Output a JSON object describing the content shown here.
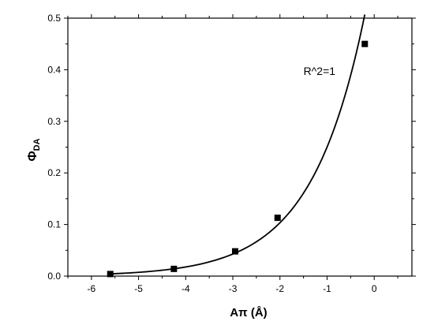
{
  "chart_data": {
    "type": "scatter",
    "title": "",
    "xlabel": {
      "main": "Aπ (Å)"
    },
    "ylabel": {
      "main": "Φ",
      "sub": "DA"
    },
    "xlim": [
      -6.5,
      0.8
    ],
    "ylim": [
      0.0,
      0.5
    ],
    "xticks": [
      -6,
      -5,
      -4,
      -3,
      -2,
      -1,
      0
    ],
    "yticks": [
      0.0,
      0.1,
      0.2,
      0.3,
      0.4,
      0.5
    ],
    "x_tick_labels": [
      "-6",
      "-5",
      "-4",
      "-3",
      "-2",
      "-1",
      "0"
    ],
    "y_tick_labels": [
      "0.0",
      "0.1",
      "0.2",
      "0.3",
      "0.4",
      "0.5"
    ],
    "grid": false,
    "series": [
      {
        "marker": "square",
        "x": [
          -5.6,
          -4.25,
          -2.95,
          -2.05,
          -0.2
        ],
        "y": [
          0.004,
          0.014,
          0.048,
          0.113,
          0.45
        ]
      }
    ],
    "fit": {
      "kind": "exponential",
      "color": "#000000"
    },
    "annotations": [
      {
        "text": "R^2=1",
        "x": -1.5,
        "y": 0.39
      }
    ]
  }
}
